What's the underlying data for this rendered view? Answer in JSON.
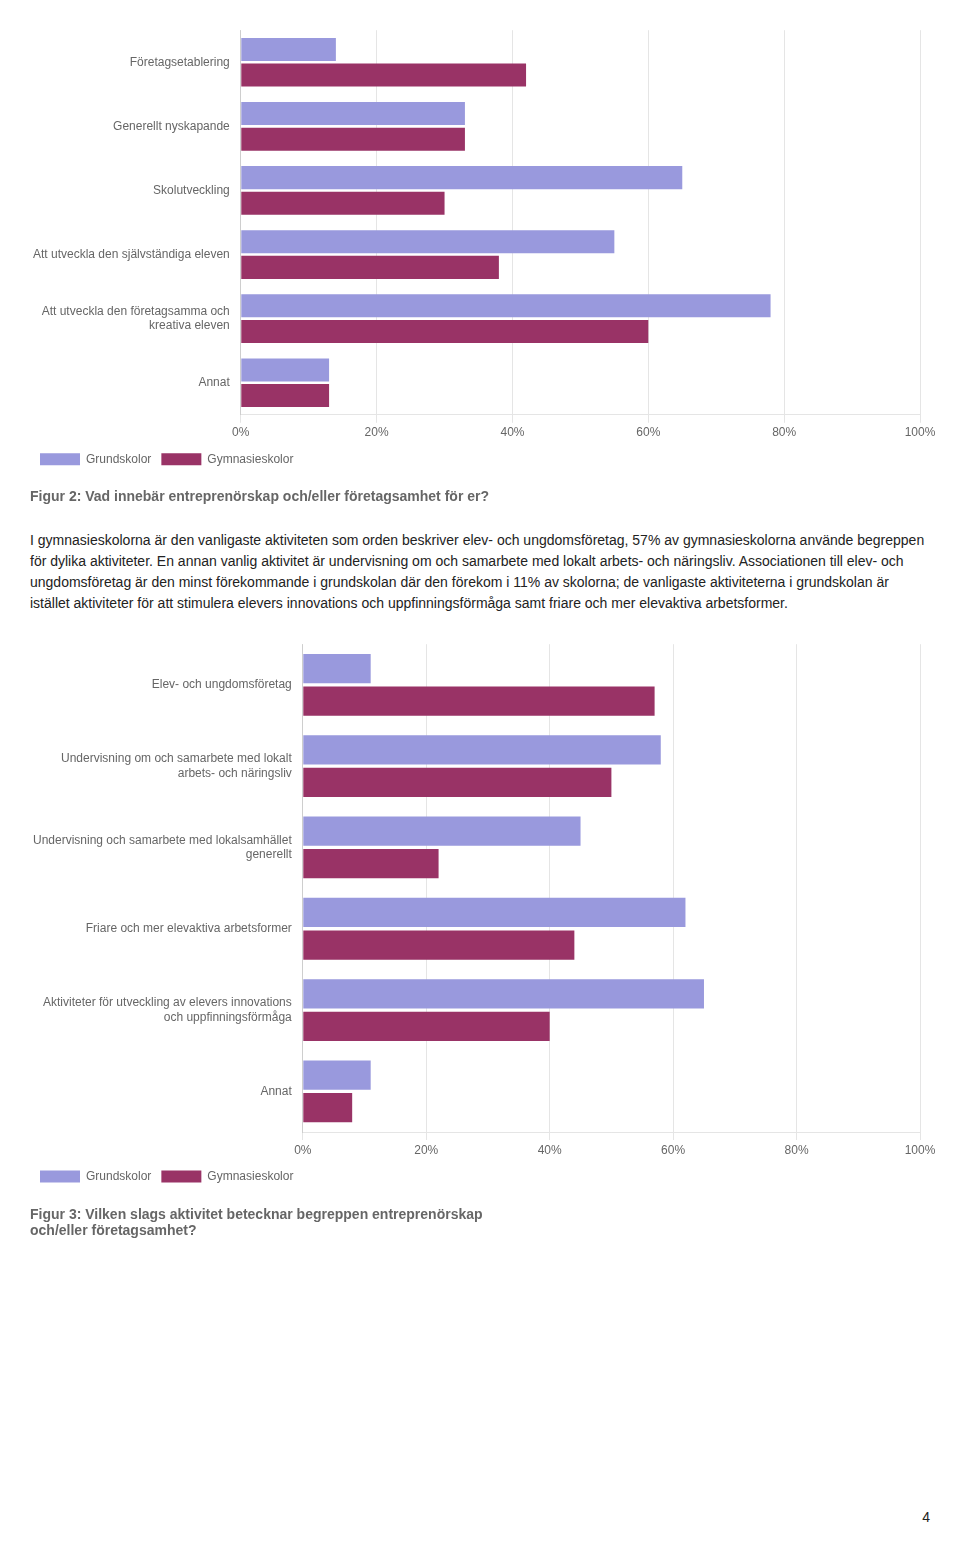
{
  "chart_data": [
    {
      "type": "bar",
      "orientation": "horizontal",
      "title": "Figur 2: Vad innebär entreprenörskap och/eller företagsamhet för er?",
      "categories": [
        "Företagsetablering",
        "Generellt nyskapande",
        "Skolutveckling",
        "Att utveckla den självständiga eleven",
        "Att utveckla den företagsamma och\nkreativa eleven",
        "Annat"
      ],
      "series": [
        {
          "name": "Grundskolor",
          "color": "#9999dd",
          "values": [
            0.14,
            0.33,
            0.65,
            0.55,
            0.78,
            0.13
          ]
        },
        {
          "name": "Gymnasieskolor",
          "color": "#993366",
          "values": [
            0.42,
            0.33,
            0.3,
            0.38,
            0.6,
            0.13
          ]
        }
      ],
      "xlim": [
        0,
        1.0
      ],
      "xticks": [
        {
          "value": 0,
          "label": "0%"
        },
        {
          "value": 0.2,
          "label": "20%"
        },
        {
          "value": 0.4,
          "label": "40%"
        },
        {
          "value": 0.6,
          "label": "60%"
        },
        {
          "value": 0.8,
          "label": "80%"
        },
        {
          "value": 1.0,
          "label": "100%"
        }
      ],
      "grid": true,
      "legend": "bottom",
      "annotations": [
        "I gymnasieskolorna är den vanligaste aktiviteten som orden beskriver elev- och ungdomsföretag, 57% av gymnasieskolorna använde begreppen för dylika aktiviteter. En annan vanlig aktivitet är undervisning om och samarbete med lokalt arbets- och näringsliv. Associationen till elev- och ungdomsföretag är den minst förekommande i grundskolan där den förekom i 11% av skolorna; de vanligaste aktiviteterna i grundskolan är istället aktiviteter för att stimulera elevers innovations och uppfinningsförmåga samt friare och mer elevaktiva arbetsformer."
      ]
    },
    {
      "type": "bar",
      "orientation": "horizontal",
      "title": "Figur 3: Vilken slags aktivitet betecknar begreppen entreprenörskap\noch/eller företagsamhet?",
      "categories": [
        "Elev- och ungdomsföretag",
        "Undervisning om och samarbete med lokalt\narbets- och näringsliv",
        "Undervisning och samarbete med lokalsamhället\ngenerellt",
        "Friare och mer elevaktiva arbetsformer",
        "Aktiviteter för utveckling av elevers innovations\noch uppfinningsförmåga",
        "Annat"
      ],
      "series": [
        {
          "name": "Grundskolor",
          "color": "#9999dd",
          "values": [
            0.11,
            0.58,
            0.45,
            0.62,
            0.65,
            0.11
          ]
        },
        {
          "name": "Gymnasieskolor",
          "color": "#993366",
          "values": [
            0.57,
            0.5,
            0.22,
            0.44,
            0.4,
            0.08
          ]
        }
      ],
      "xlim": [
        0,
        1.0
      ],
      "xticks": [
        {
          "value": 0,
          "label": "0%"
        },
        {
          "value": 0.2,
          "label": "20%"
        },
        {
          "value": 0.4,
          "label": "40%"
        },
        {
          "value": 0.6,
          "label": "60%"
        },
        {
          "value": 0.8,
          "label": "80%"
        },
        {
          "value": 1.0,
          "label": "100%"
        }
      ],
      "grid": true,
      "legend": "bottom",
      "annotations": [
        "4"
      ]
    }
  ]
}
